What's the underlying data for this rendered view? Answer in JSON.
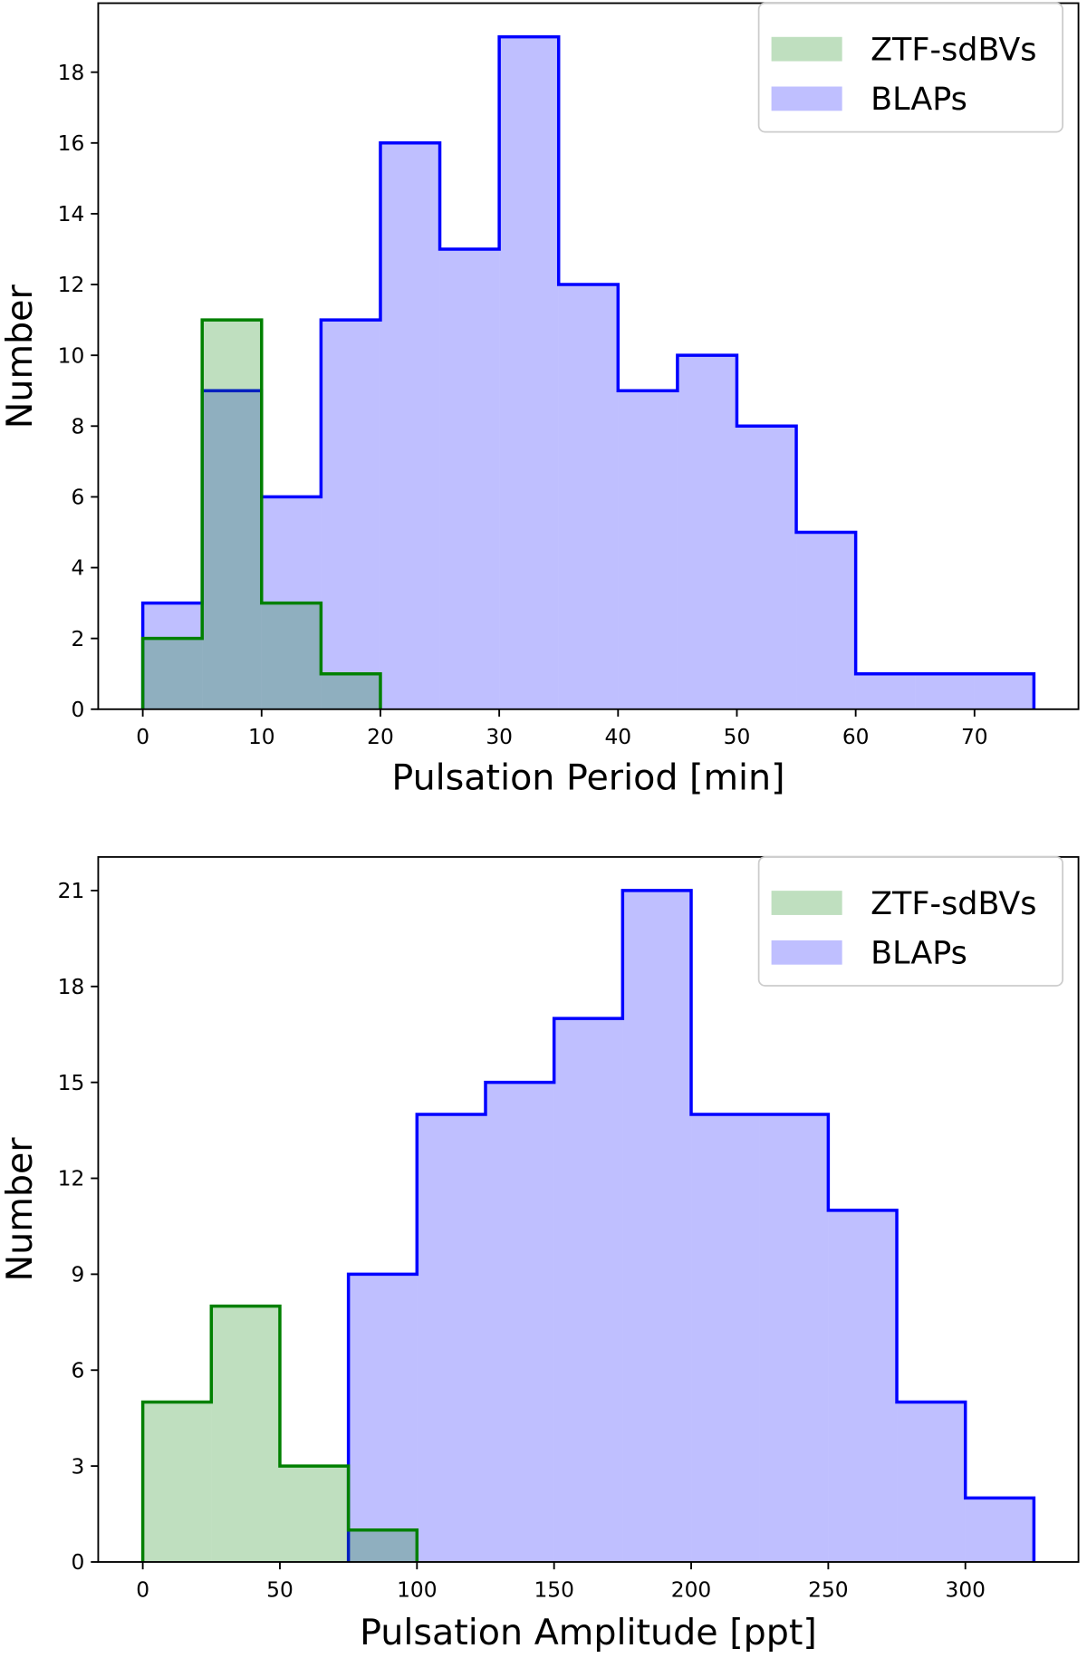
{
  "chart_data": [
    {
      "type": "histogram",
      "xlabel": "Pulsation Period [min]",
      "ylabel": "Number",
      "xlim": [
        -3.75,
        78.75
      ],
      "ylim": [
        0,
        19.95
      ],
      "xticks": [
        0,
        10,
        20,
        30,
        40,
        50,
        60,
        70
      ],
      "yticks": [
        0,
        2,
        4,
        6,
        8,
        10,
        12,
        14,
        16,
        18
      ],
      "legend_position": "top-right",
      "series": [
        {
          "name": "BLAPs",
          "color": "#0000ff",
          "fill_alpha": 0.25,
          "bin_edges": [
            0,
            5,
            10,
            15,
            20,
            25,
            30,
            35,
            40,
            45,
            50,
            55,
            60,
            65,
            70,
            75
          ],
          "counts": [
            3,
            9,
            6,
            11,
            16,
            13,
            19,
            12,
            9,
            10,
            8,
            5,
            1,
            1,
            1
          ]
        },
        {
          "name": "ZTF-sdBVs",
          "color": "#008000",
          "fill_alpha": 0.25,
          "bin_edges": [
            0,
            5,
            10,
            15,
            20
          ],
          "counts": [
            2,
            11,
            3,
            1
          ]
        }
      ],
      "legend_order": [
        "ZTF-sdBVs",
        "BLAPs"
      ]
    },
    {
      "type": "histogram",
      "xlabel": "Pulsation Amplitude [ppt]",
      "ylabel": "Number",
      "xlim": [
        -16.25,
        341.25
      ],
      "ylim": [
        0,
        22.05
      ],
      "xticks": [
        0,
        50,
        100,
        150,
        200,
        250,
        300
      ],
      "yticks": [
        0,
        3,
        6,
        9,
        12,
        15,
        18,
        21
      ],
      "legend_position": "top-right",
      "series": [
        {
          "name": "BLAPs",
          "color": "#0000ff",
          "fill_alpha": 0.25,
          "bin_edges": [
            75,
            100,
            125,
            150,
            175,
            200,
            225,
            250,
            275,
            300,
            325
          ],
          "counts": [
            9,
            14,
            15,
            17,
            21,
            14,
            14,
            11,
            5,
            2
          ]
        },
        {
          "name": "ZTF-sdBVs",
          "color": "#008000",
          "fill_alpha": 0.25,
          "bin_edges": [
            0,
            25,
            50,
            75,
            100
          ],
          "counts": [
            5,
            8,
            3,
            1
          ]
        }
      ],
      "legend_order": [
        "ZTF-sdBVs",
        "BLAPs"
      ]
    }
  ]
}
